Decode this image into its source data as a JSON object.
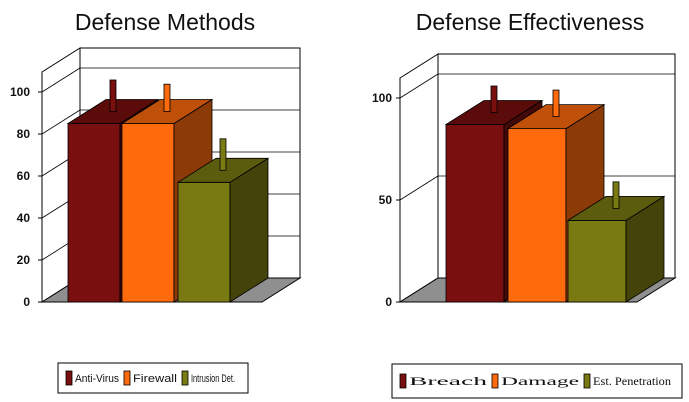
{
  "chart_data": [
    {
      "type": "bar",
      "title": "Defense Methods",
      "categories": [
        "Anti-Virus",
        "Firewall",
        "Intrusion Det."
      ],
      "values": [
        85,
        85,
        57
      ],
      "error_caps": [
        100,
        98,
        72
      ],
      "ylim": [
        0,
        100
      ],
      "yticks": [
        "0",
        "20",
        "40",
        "60",
        "80",
        "100"
      ],
      "legend_position": "bottom",
      "legend": [
        "Anti-Virus",
        "Firewall",
        "Intrusion Det."
      ],
      "colors": [
        "#7a0f0f",
        "#ff6a0d",
        "#7a7a13"
      ]
    },
    {
      "type": "bar",
      "title": "Defense Effectiveness",
      "categories": [
        "Breach",
        "Damage",
        "Est. Penetration"
      ],
      "values": [
        87,
        85,
        40
      ],
      "error_caps": [
        100,
        98,
        53
      ],
      "ylim": [
        0,
        100
      ],
      "yticks": [
        "0",
        "50",
        "100"
      ],
      "legend_position": "bottom",
      "legend": [
        "Breach",
        "Damage",
        "Est. Penetration"
      ],
      "colors": [
        "#7a0f0f",
        "#ff6a0d",
        "#7a7a13"
      ]
    }
  ]
}
